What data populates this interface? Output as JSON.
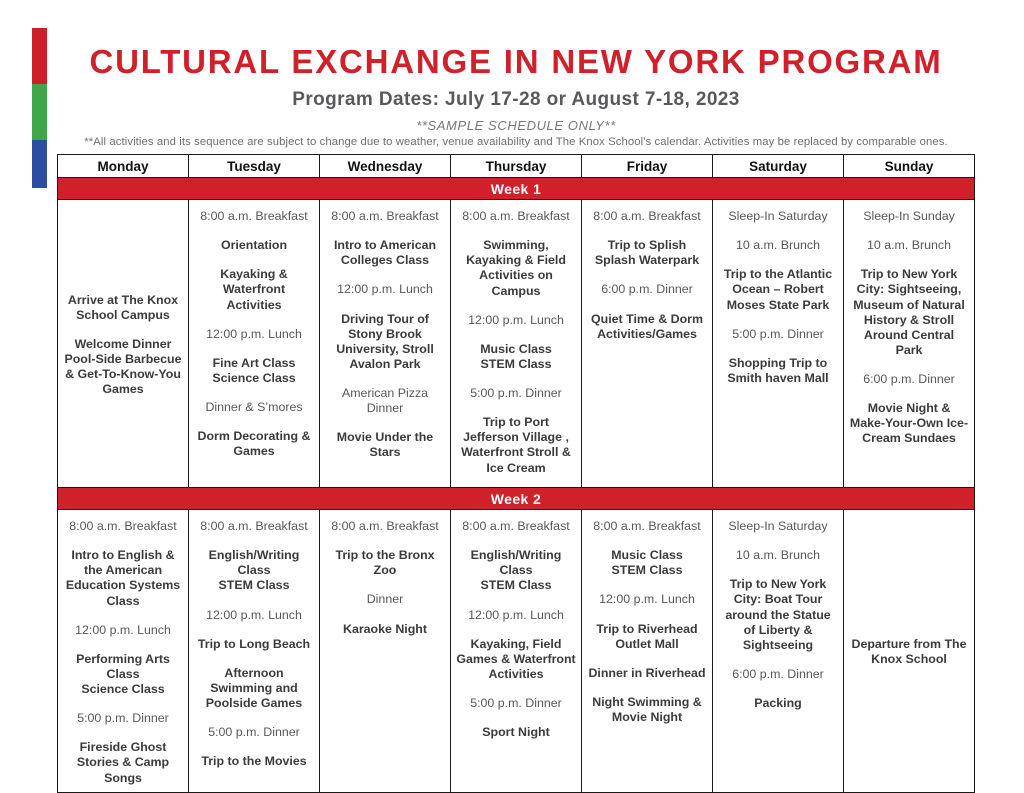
{
  "header": {
    "title": "CULTURAL EXCHANGE IN NEW YORK PROGRAM",
    "subtitle": "Program Dates: July 17-28 or August 7-18, 2023",
    "sample_note": "**SAMPLE SCHEDULE ONLY**",
    "disclaimer": "**All activities and its sequence are subject to change due to weather, venue availability and The Knox School's calendar. Activities may be replaced by comparable ones."
  },
  "colors": {
    "red": "#d0202a",
    "bar_red": "#cb2026",
    "bar_green": "#3fa749",
    "bar_blue": "#2b4ea2"
  },
  "table": {
    "days": [
      "Monday",
      "Tuesday",
      "Wednesday",
      "Thursday",
      "Friday",
      "Saturday",
      "Sunday"
    ],
    "weeks": [
      {
        "label": "Week 1",
        "columns": [
          {
            "day": "Monday",
            "valign": "middle",
            "items": [
              {
                "text": "Arrive at The Knox School Campus",
                "bold": true
              },
              {
                "text": "Welcome Dinner Pool-Side Barbecue & Get-To-Know-You Games",
                "bold": true
              }
            ]
          },
          {
            "day": "Tuesday",
            "valign": "top",
            "items": [
              {
                "text": "8:00 a.m. Breakfast",
                "bold": false
              },
              {
                "text": "Orientation",
                "bold": true
              },
              {
                "text": "Kayaking & Waterfront Activities",
                "bold": true
              },
              {
                "text": "12:00 p.m. Lunch",
                "bold": false
              },
              {
                "text": "Fine Art Class\nScience Class",
                "bold": true
              },
              {
                "text": "Dinner & S’mores",
                "bold": false
              },
              {
                "text": "Dorm Decorating & Games",
                "bold": true
              }
            ]
          },
          {
            "day": "Wednesday",
            "valign": "top",
            "items": [
              {
                "text": "8:00 a.m. Breakfast",
                "bold": false
              },
              {
                "text": "Intro to American Colleges Class",
                "bold": true
              },
              {
                "text": "12:00 p.m. Lunch",
                "bold": false
              },
              {
                "text": "Driving Tour of Stony Brook University, Stroll Avalon Park",
                "bold": true
              },
              {
                "text": "American Pizza Dinner",
                "bold": false
              },
              {
                "text": "Movie Under the Stars",
                "bold": true
              }
            ]
          },
          {
            "day": "Thursday",
            "valign": "top",
            "items": [
              {
                "text": "8:00 a.m. Breakfast",
                "bold": false
              },
              {
                "text": "Swimming, Kayaking & Field Activities on Campus",
                "bold": true
              },
              {
                "text": "12:00 p.m. Lunch",
                "bold": false
              },
              {
                "text": "Music Class\nSTEM Class",
                "bold": true
              },
              {
                "text": "5:00 p.m. Dinner",
                "bold": false
              },
              {
                "text": "Trip to Port Jefferson Village , Waterfront Stroll & Ice Cream",
                "bold": true
              }
            ]
          },
          {
            "day": "Friday",
            "valign": "top",
            "items": [
              {
                "text": "8:00 a.m. Breakfast",
                "bold": false
              },
              {
                "text": "Trip to Splish Splash Waterpark",
                "bold": true
              },
              {
                "text": "6:00 p.m. Dinner",
                "bold": false
              },
              {
                "text": "Quiet Time & Dorm Activities/Games",
                "bold": true
              }
            ]
          },
          {
            "day": "Saturday",
            "valign": "top",
            "items": [
              {
                "text": "Sleep-In Saturday",
                "bold": false
              },
              {
                "text": "10 a.m. Brunch",
                "bold": false
              },
              {
                "text": "Trip to the Atlantic Ocean – Robert Moses State Park",
                "bold": true
              },
              {
                "text": "5:00 p.m. Dinner",
                "bold": false
              },
              {
                "text": "Shopping Trip to Smith haven Mall",
                "bold": true
              }
            ]
          },
          {
            "day": "Sunday",
            "valign": "top",
            "items": [
              {
                "text": "Sleep-In Sunday",
                "bold": false
              },
              {
                "text": "10 a.m. Brunch",
                "bold": false
              },
              {
                "text": "Trip to New York City: Sightseeing, Museum of Natural History & Stroll Around Central Park",
                "bold": true
              },
              {
                "text": "6:00 p.m. Dinner",
                "bold": false
              },
              {
                "text": "Movie Night & Make-Your-Own Ice-Cream Sundaes",
                "bold": true
              }
            ]
          }
        ]
      },
      {
        "label": "Week 2",
        "columns": [
          {
            "day": "Monday",
            "valign": "top",
            "items": [
              {
                "text": "8:00 a.m. Breakfast",
                "bold": false
              },
              {
                "text": "Intro to English & the American Education Systems Class",
                "bold": true
              },
              {
                "text": "12:00 p.m. Lunch",
                "bold": false
              },
              {
                "text": "Performing Arts Class\nScience Class",
                "bold": true
              },
              {
                "text": "5:00 p.m. Dinner",
                "bold": false
              },
              {
                "text": "Fireside Ghost Stories & Camp Songs",
                "bold": true
              }
            ]
          },
          {
            "day": "Tuesday",
            "valign": "top",
            "items": [
              {
                "text": "8:00 a.m. Breakfast",
                "bold": false
              },
              {
                "text": "English/Writing Class\nSTEM Class",
                "bold": true
              },
              {
                "text": "12:00 p.m. Lunch",
                "bold": false
              },
              {
                "text": "Trip to Long Beach",
                "bold": true
              },
              {
                "text": "Afternoon Swimming and Poolside Games",
                "bold": true
              },
              {
                "text": "5:00 p.m. Dinner",
                "bold": false
              },
              {
                "text": "Trip to the Movies",
                "bold": true
              }
            ]
          },
          {
            "day": "Wednesday",
            "valign": "top",
            "items": [
              {
                "text": "8:00 a.m. Breakfast",
                "bold": false
              },
              {
                "text": "Trip to the Bronx Zoo",
                "bold": true
              },
              {
                "text": "Dinner",
                "bold": false
              },
              {
                "text": "Karaoke Night",
                "bold": true
              }
            ]
          },
          {
            "day": "Thursday",
            "valign": "top",
            "items": [
              {
                "text": "8:00 a.m. Breakfast",
                "bold": false
              },
              {
                "text": "English/Writing Class\nSTEM Class",
                "bold": true
              },
              {
                "text": "12:00 p.m. Lunch",
                "bold": false
              },
              {
                "text": "Kayaking,  Field Games & Waterfront Activities",
                "bold": true
              },
              {
                "text": "5:00 p.m. Dinner",
                "bold": false
              },
              {
                "text": "Sport Night",
                "bold": true
              }
            ]
          },
          {
            "day": "Friday",
            "valign": "top",
            "items": [
              {
                "text": "8:00 a.m. Breakfast",
                "bold": false
              },
              {
                "text": "Music Class\nSTEM Class",
                "bold": true
              },
              {
                "text": "12:00 p.m. Lunch",
                "bold": false
              },
              {
                "text": "Trip to Riverhead Outlet Mall",
                "bold": true
              },
              {
                "text": "Dinner in Riverhead",
                "bold": true
              },
              {
                "text": "Night Swimming & Movie Night",
                "bold": true
              }
            ]
          },
          {
            "day": "Saturday",
            "valign": "top",
            "items": [
              {
                "text": "Sleep-In Saturday",
                "bold": false
              },
              {
                "text": "10 a.m. Brunch",
                "bold": false
              },
              {
                "text": "Trip to New York City: Boat Tour around the Statue of Liberty & Sightseeing",
                "bold": true
              },
              {
                "text": "6:00 p.m. Dinner",
                "bold": false
              },
              {
                "text": "Packing",
                "bold": true
              }
            ]
          },
          {
            "day": "Sunday",
            "valign": "middle",
            "items": [
              {
                "text": "Departure from The Knox School",
                "bold": true
              }
            ]
          }
        ]
      }
    ]
  }
}
